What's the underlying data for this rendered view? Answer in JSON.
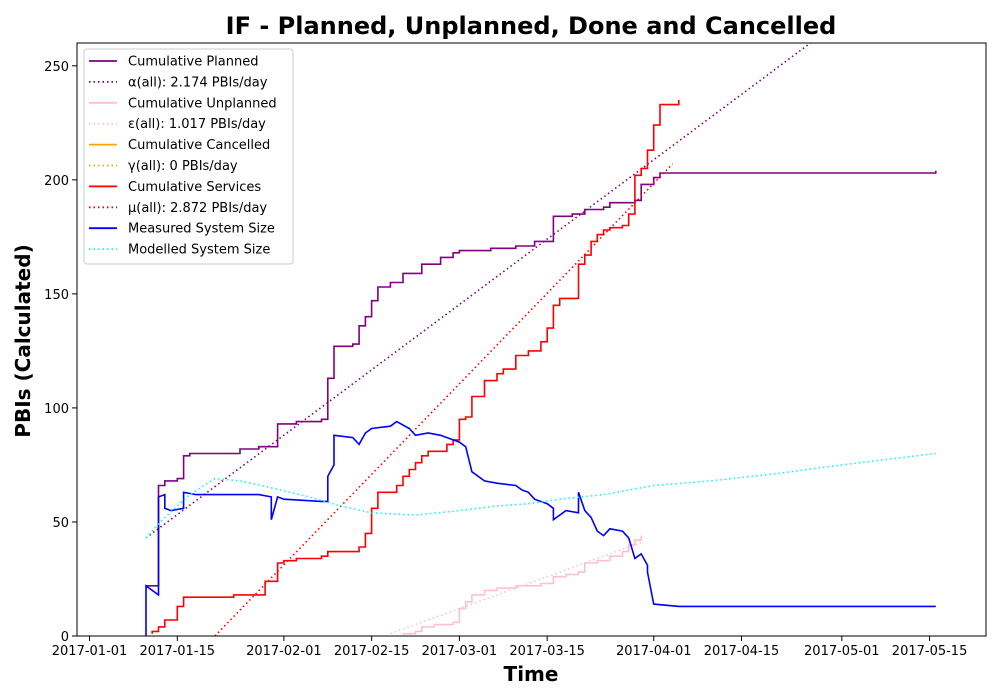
{
  "chart_data": {
    "type": "line",
    "title": "IF - Planned, Unplanned, Done  and Cancelled",
    "xlabel": "Time",
    "ylabel": "PBIs (Calculated)",
    "xlim": [
      "2016-12-30",
      "2017-05-24"
    ],
    "ylim": [
      0,
      260
    ],
    "x_ticks": [
      "2017-01-01",
      "2017-01-15",
      "2017-02-01",
      "2017-02-15",
      "2017-03-01",
      "2017-03-15",
      "2017-04-01",
      "2017-04-15",
      "2017-05-01",
      "2017-05-15"
    ],
    "y_ticks": [
      0,
      50,
      100,
      150,
      200,
      250
    ],
    "grid": false,
    "legend_position": "top-left",
    "series": [
      {
        "name": "Cumulative Planned",
        "color": "#800080",
        "style": "solid",
        "step": true,
        "points": [
          [
            "2017-01-10",
            22
          ],
          [
            "2017-01-12",
            23
          ],
          [
            "2017-01-12",
            66
          ],
          [
            "2017-01-13",
            68
          ],
          [
            "2017-01-15",
            69
          ],
          [
            "2017-01-16",
            79
          ],
          [
            "2017-01-17",
            80
          ],
          [
            "2017-01-25",
            82
          ],
          [
            "2017-01-28",
            83
          ],
          [
            "2017-01-31",
            93
          ],
          [
            "2017-02-03",
            94
          ],
          [
            "2017-02-07",
            95
          ],
          [
            "2017-02-08",
            113
          ],
          [
            "2017-02-09",
            127
          ],
          [
            "2017-02-12",
            128
          ],
          [
            "2017-02-13",
            136
          ],
          [
            "2017-02-14",
            140
          ],
          [
            "2017-02-15",
            147
          ],
          [
            "2017-02-16",
            153
          ],
          [
            "2017-02-18",
            155
          ],
          [
            "2017-02-20",
            159
          ],
          [
            "2017-02-23",
            163
          ],
          [
            "2017-02-26",
            166
          ],
          [
            "2017-02-28",
            168
          ],
          [
            "2017-03-01",
            169
          ],
          [
            "2017-03-06",
            170
          ],
          [
            "2017-03-10",
            171
          ],
          [
            "2017-03-13",
            173
          ],
          [
            "2017-03-16",
            174
          ],
          [
            "2017-03-16",
            184
          ],
          [
            "2017-03-19",
            185
          ],
          [
            "2017-03-21",
            187
          ],
          [
            "2017-03-24",
            188
          ],
          [
            "2017-03-25",
            190
          ],
          [
            "2017-03-29",
            191
          ],
          [
            "2017-03-30",
            198
          ],
          [
            "2017-04-01",
            201
          ],
          [
            "2017-04-02",
            203
          ],
          [
            "2017-05-16",
            204
          ]
        ]
      },
      {
        "name": "α(all): 2.174 PBIs/day",
        "color": "#800080",
        "style": "dotted",
        "points": [
          [
            "2017-01-10",
            43
          ],
          [
            "2017-04-26",
            260
          ]
        ]
      },
      {
        "name": "Cumulative Unplanned",
        "color": "#ffc0cb",
        "style": "solid",
        "step": true,
        "points": [
          [
            "2017-02-20",
            1
          ],
          [
            "2017-02-22",
            2
          ],
          [
            "2017-02-23",
            4
          ],
          [
            "2017-02-25",
            5
          ],
          [
            "2017-02-28",
            6
          ],
          [
            "2017-03-01",
            12
          ],
          [
            "2017-03-02",
            15
          ],
          [
            "2017-03-03",
            18
          ],
          [
            "2017-03-05",
            20
          ],
          [
            "2017-03-07",
            21
          ],
          [
            "2017-03-10",
            22
          ],
          [
            "2017-03-14",
            23
          ],
          [
            "2017-03-16",
            26
          ],
          [
            "2017-03-18",
            27
          ],
          [
            "2017-03-20",
            28
          ],
          [
            "2017-03-21",
            32
          ],
          [
            "2017-03-23",
            33
          ],
          [
            "2017-03-25",
            35
          ],
          [
            "2017-03-27",
            37
          ],
          [
            "2017-03-28",
            40
          ],
          [
            "2017-03-29",
            42
          ],
          [
            "2017-03-30",
            44
          ]
        ]
      },
      {
        "name": "ε(all): 1.017 PBIs/day",
        "color": "#ffc0cb",
        "style": "dotted",
        "points": [
          [
            "2017-02-18",
            1
          ],
          [
            "2017-03-30",
            41
          ]
        ]
      },
      {
        "name": "Cumulative Cancelled",
        "color": "#ffa500",
        "style": "solid",
        "points": []
      },
      {
        "name": "γ(all): 0 PBIs/day",
        "color": "#ffa500",
        "style": "dotted",
        "points": []
      },
      {
        "name": "Cumulative Services",
        "color": "#ff0000",
        "style": "solid",
        "step": true,
        "points": [
          [
            "2017-01-11",
            1
          ],
          [
            "2017-01-11",
            2
          ],
          [
            "2017-01-12",
            4
          ],
          [
            "2017-01-13",
            7
          ],
          [
            "2017-01-15",
            13
          ],
          [
            "2017-01-16",
            17
          ],
          [
            "2017-01-24",
            18
          ],
          [
            "2017-01-29",
            24
          ],
          [
            "2017-01-31",
            32
          ],
          [
            "2017-02-01",
            33
          ],
          [
            "2017-02-03",
            34
          ],
          [
            "2017-02-07",
            35
          ],
          [
            "2017-02-08",
            37
          ],
          [
            "2017-02-13",
            39
          ],
          [
            "2017-02-14",
            45
          ],
          [
            "2017-02-15",
            56
          ],
          [
            "2017-02-16",
            63
          ],
          [
            "2017-02-19",
            66
          ],
          [
            "2017-02-20",
            70
          ],
          [
            "2017-02-21",
            73
          ],
          [
            "2017-02-22",
            76
          ],
          [
            "2017-02-23",
            79
          ],
          [
            "2017-02-24",
            81
          ],
          [
            "2017-02-27",
            84
          ],
          [
            "2017-02-28",
            86
          ],
          [
            "2017-03-01",
            95
          ],
          [
            "2017-03-02",
            96
          ],
          [
            "2017-03-03",
            105
          ],
          [
            "2017-03-05",
            112
          ],
          [
            "2017-03-07",
            115
          ],
          [
            "2017-03-08",
            117
          ],
          [
            "2017-03-10",
            123
          ],
          [
            "2017-03-12",
            125
          ],
          [
            "2017-03-14",
            129
          ],
          [
            "2017-03-15",
            135
          ],
          [
            "2017-03-16",
            145
          ],
          [
            "2017-03-17",
            148
          ],
          [
            "2017-03-20",
            149
          ],
          [
            "2017-03-20",
            163
          ],
          [
            "2017-03-21",
            167
          ],
          [
            "2017-03-22",
            173
          ],
          [
            "2017-03-23",
            176
          ],
          [
            "2017-03-24",
            178
          ],
          [
            "2017-03-25",
            179
          ],
          [
            "2017-03-27",
            180
          ],
          [
            "2017-03-28",
            185
          ],
          [
            "2017-03-29",
            202
          ],
          [
            "2017-03-30",
            205
          ],
          [
            "2017-03-31",
            213
          ],
          [
            "2017-04-01",
            224
          ],
          [
            "2017-04-02",
            233
          ],
          [
            "2017-04-05",
            235
          ]
        ]
      },
      {
        "name": "μ(all): 2.872 PBIs/day",
        "color": "#ff0000",
        "style": "dotted",
        "points": [
          [
            "2017-01-21",
            0
          ],
          [
            "2017-04-04",
            207
          ]
        ]
      },
      {
        "name": "Measured System Size",
        "color": "#0000ff",
        "style": "solid",
        "points": [
          [
            "2017-01-10",
            0
          ],
          [
            "2017-01-10",
            22
          ],
          [
            "2017-01-11",
            20
          ],
          [
            "2017-01-12",
            18
          ],
          [
            "2017-01-12",
            61
          ],
          [
            "2017-01-13",
            62
          ],
          [
            "2017-01-13",
            56
          ],
          [
            "2017-01-14",
            55
          ],
          [
            "2017-01-16",
            56
          ],
          [
            "2017-01-16",
            63
          ],
          [
            "2017-01-18",
            62
          ],
          [
            "2017-01-28",
            62
          ],
          [
            "2017-01-30",
            61
          ],
          [
            "2017-01-30",
            51
          ],
          [
            "2017-01-31",
            61
          ],
          [
            "2017-02-01",
            60
          ],
          [
            "2017-02-07",
            59
          ],
          [
            "2017-02-08",
            59
          ],
          [
            "2017-02-08",
            70
          ],
          [
            "2017-02-09",
            75
          ],
          [
            "2017-02-09",
            88
          ],
          [
            "2017-02-12",
            87
          ],
          [
            "2017-02-13",
            84
          ],
          [
            "2017-02-14",
            89
          ],
          [
            "2017-02-15",
            91
          ],
          [
            "2017-02-18",
            92
          ],
          [
            "2017-02-19",
            94
          ],
          [
            "2017-02-21",
            91
          ],
          [
            "2017-02-22",
            88
          ],
          [
            "2017-02-24",
            89
          ],
          [
            "2017-02-26",
            88
          ],
          [
            "2017-02-28",
            86
          ],
          [
            "2017-03-01",
            85
          ],
          [
            "2017-03-02",
            83
          ],
          [
            "2017-03-03",
            72
          ],
          [
            "2017-03-05",
            68
          ],
          [
            "2017-03-07",
            67
          ],
          [
            "2017-03-10",
            66
          ],
          [
            "2017-03-11",
            64
          ],
          [
            "2017-03-12",
            63
          ],
          [
            "2017-03-13",
            60
          ],
          [
            "2017-03-15",
            58
          ],
          [
            "2017-03-16",
            56
          ],
          [
            "2017-03-16",
            51
          ],
          [
            "2017-03-18",
            55
          ],
          [
            "2017-03-20",
            54
          ],
          [
            "2017-03-20",
            63
          ],
          [
            "2017-03-21",
            55
          ],
          [
            "2017-03-22",
            52
          ],
          [
            "2017-03-23",
            46
          ],
          [
            "2017-03-24",
            44
          ],
          [
            "2017-03-25",
            47
          ],
          [
            "2017-03-27",
            46
          ],
          [
            "2017-03-28",
            43
          ],
          [
            "2017-03-29",
            34
          ],
          [
            "2017-03-30",
            36
          ],
          [
            "2017-03-31",
            31
          ],
          [
            "2017-03-31",
            28
          ],
          [
            "2017-04-01",
            14
          ],
          [
            "2017-04-05",
            13
          ],
          [
            "2017-05-16",
            13
          ]
        ]
      },
      {
        "name": "Modelled System Size",
        "color": "#00ffff",
        "style": "dotted",
        "points": [
          [
            "2017-01-10",
            43
          ],
          [
            "2017-01-13",
            52
          ],
          [
            "2017-01-17",
            62
          ],
          [
            "2017-01-21",
            69
          ],
          [
            "2017-01-25",
            68
          ],
          [
            "2017-01-30",
            65
          ],
          [
            "2017-02-05",
            61
          ],
          [
            "2017-02-10",
            57
          ],
          [
            "2017-02-15",
            54
          ],
          [
            "2017-02-22",
            53
          ],
          [
            "2017-03-01",
            55
          ],
          [
            "2017-03-07",
            57
          ],
          [
            "2017-03-12",
            58
          ],
          [
            "2017-03-17",
            60
          ],
          [
            "2017-03-24",
            62
          ],
          [
            "2017-04-01",
            66
          ],
          [
            "2017-04-10",
            68
          ],
          [
            "2017-04-20",
            71
          ],
          [
            "2017-05-01",
            75
          ],
          [
            "2017-05-16",
            80
          ]
        ]
      }
    ]
  }
}
